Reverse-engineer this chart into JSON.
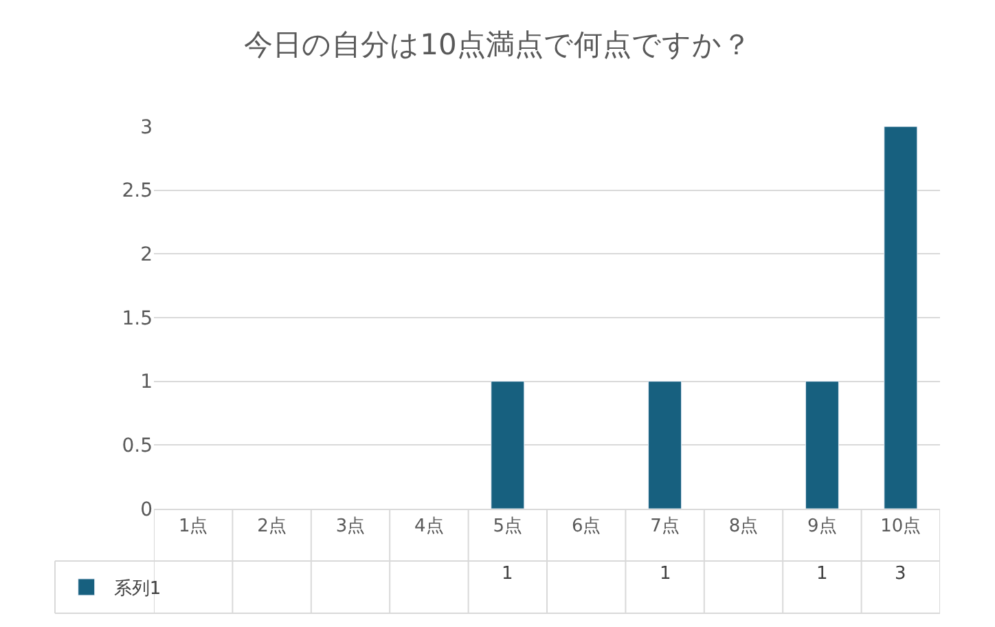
{
  "chart_data": {
    "type": "bar",
    "title": "今日の自分は10点満点で何点ですか？",
    "categories": [
      "1点",
      "2点",
      "3点",
      "4点",
      "5点",
      "6点",
      "7点",
      "8点",
      "9点",
      "10点"
    ],
    "series": [
      {
        "name": "系列1",
        "color": "#17607f",
        "values": [
          null,
          null,
          null,
          null,
          1,
          null,
          1,
          null,
          1,
          3
        ]
      }
    ],
    "ylim": [
      0,
      3
    ],
    "yticks": [
      0,
      0.5,
      1,
      1.5,
      2,
      2.5,
      3
    ],
    "grid": "y",
    "legend": "bottom left",
    "data_labels": true
  }
}
